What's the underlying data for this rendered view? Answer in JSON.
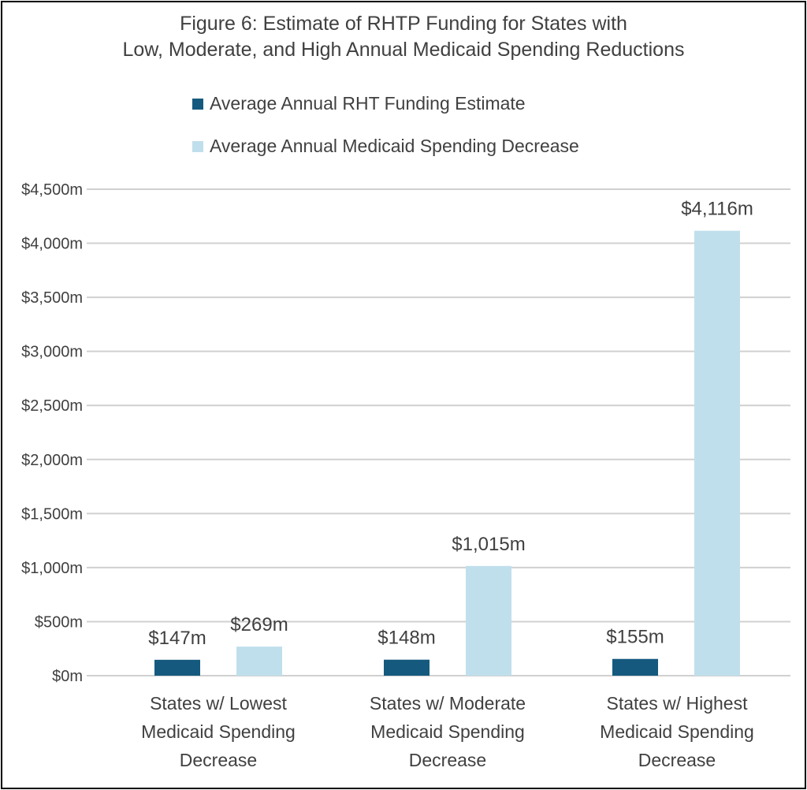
{
  "chart_data": {
    "type": "bar",
    "title_lines": [
      "Figure 6: Estimate of RHTP Funding for States with",
      "Low, Moderate, and High Annual Medicaid Spending Reductions"
    ],
    "categories": [
      [
        "States w/ Lowest",
        "Medicaid Spending",
        "Decrease"
      ],
      [
        "States w/ Moderate",
        "Medicaid Spending",
        "Decrease"
      ],
      [
        "States w/ Highest",
        "Medicaid Spending",
        "Decrease"
      ]
    ],
    "series": [
      {
        "name": "Average Annual RHT Funding Estimate",
        "color": "#155a7e",
        "values": [
          147,
          148,
          155
        ],
        "labels": [
          "$147m",
          "$148m",
          "$155m"
        ]
      },
      {
        "name": "Average Annual Medicaid Spending Decrease",
        "color": "#c0dfec",
        "values": [
          269,
          1015,
          4116
        ],
        "labels": [
          "$269m",
          "$1,015m",
          "$4,116m"
        ]
      }
    ],
    "yticks": [
      0,
      500,
      1000,
      1500,
      2000,
      2500,
      3000,
      3500,
      4000,
      4500
    ],
    "ytick_labels": [
      "$0m",
      "$500m",
      "$1,000m",
      "$1,500m",
      "$2,000m",
      "$2,500m",
      "$3,000m",
      "$3,500m",
      "$4,000m",
      "$4,500m"
    ],
    "ylim": [
      0,
      4500
    ],
    "grid": true,
    "legend_placement": "top"
  }
}
